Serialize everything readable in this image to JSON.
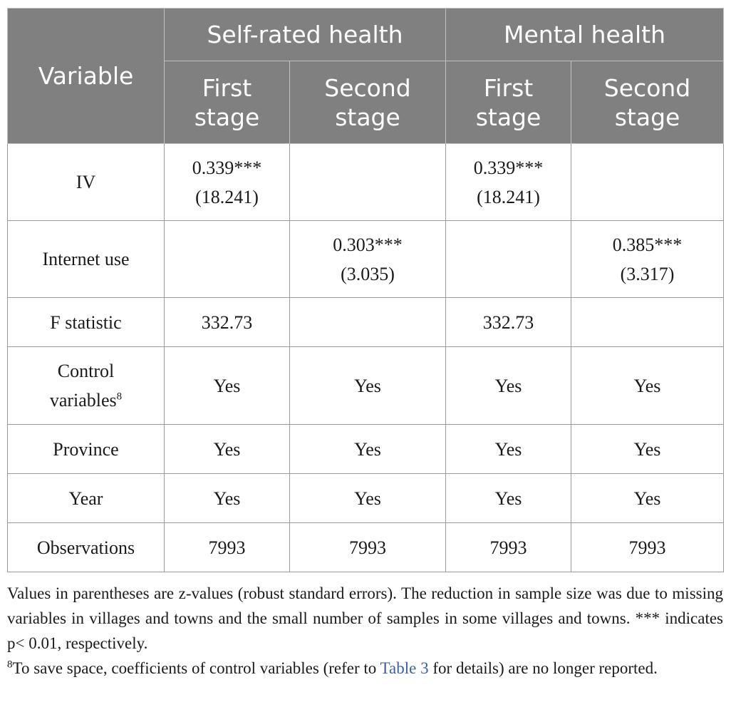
{
  "header": {
    "variable": "Variable",
    "groups": [
      "Self-rated health",
      "Mental health"
    ],
    "sub_first": [
      "First",
      "stage"
    ],
    "sub_second": [
      "Second",
      "stage"
    ]
  },
  "rows": {
    "iv": {
      "label": "IV",
      "c1_coef": "0.339***",
      "c1_z": "(18.241)",
      "c3_coef": "0.339***",
      "c3_z": "(18.241)"
    },
    "internet": {
      "label": "Internet use",
      "c2_coef": "0.303***",
      "c2_z": "(3.035)",
      "c4_coef": "0.385***",
      "c4_z": "(3.317)"
    },
    "fstat": {
      "label": "F statistic",
      "c1": "332.73",
      "c3": "332.73"
    },
    "control": {
      "label_line1": "Control",
      "label_line2": "variables",
      "sup": "8",
      "values": [
        "Yes",
        "Yes",
        "Yes",
        "Yes"
      ]
    },
    "province": {
      "label": "Province",
      "values": [
        "Yes",
        "Yes",
        "Yes",
        "Yes"
      ]
    },
    "year": {
      "label": "Year",
      "values": [
        "Yes",
        "Yes",
        "Yes",
        "Yes"
      ]
    },
    "observations": {
      "label": "Observations",
      "values": [
        "7993",
        "7993",
        "7993",
        "7993"
      ]
    }
  },
  "notes": {
    "note1": "Values in parentheses are z-values (robust standard errors). The reduction in sample size was due to missing variables in villages and towns and the small number of samples in some villages and towns. *** indicates p< 0.01, respectively.",
    "footnote_mark": "8",
    "footnote_pre": "To save space, coefficients of control variables (refer to ",
    "footnote_link": "Table 3",
    "footnote_post": " for details) are no longer reported."
  }
}
